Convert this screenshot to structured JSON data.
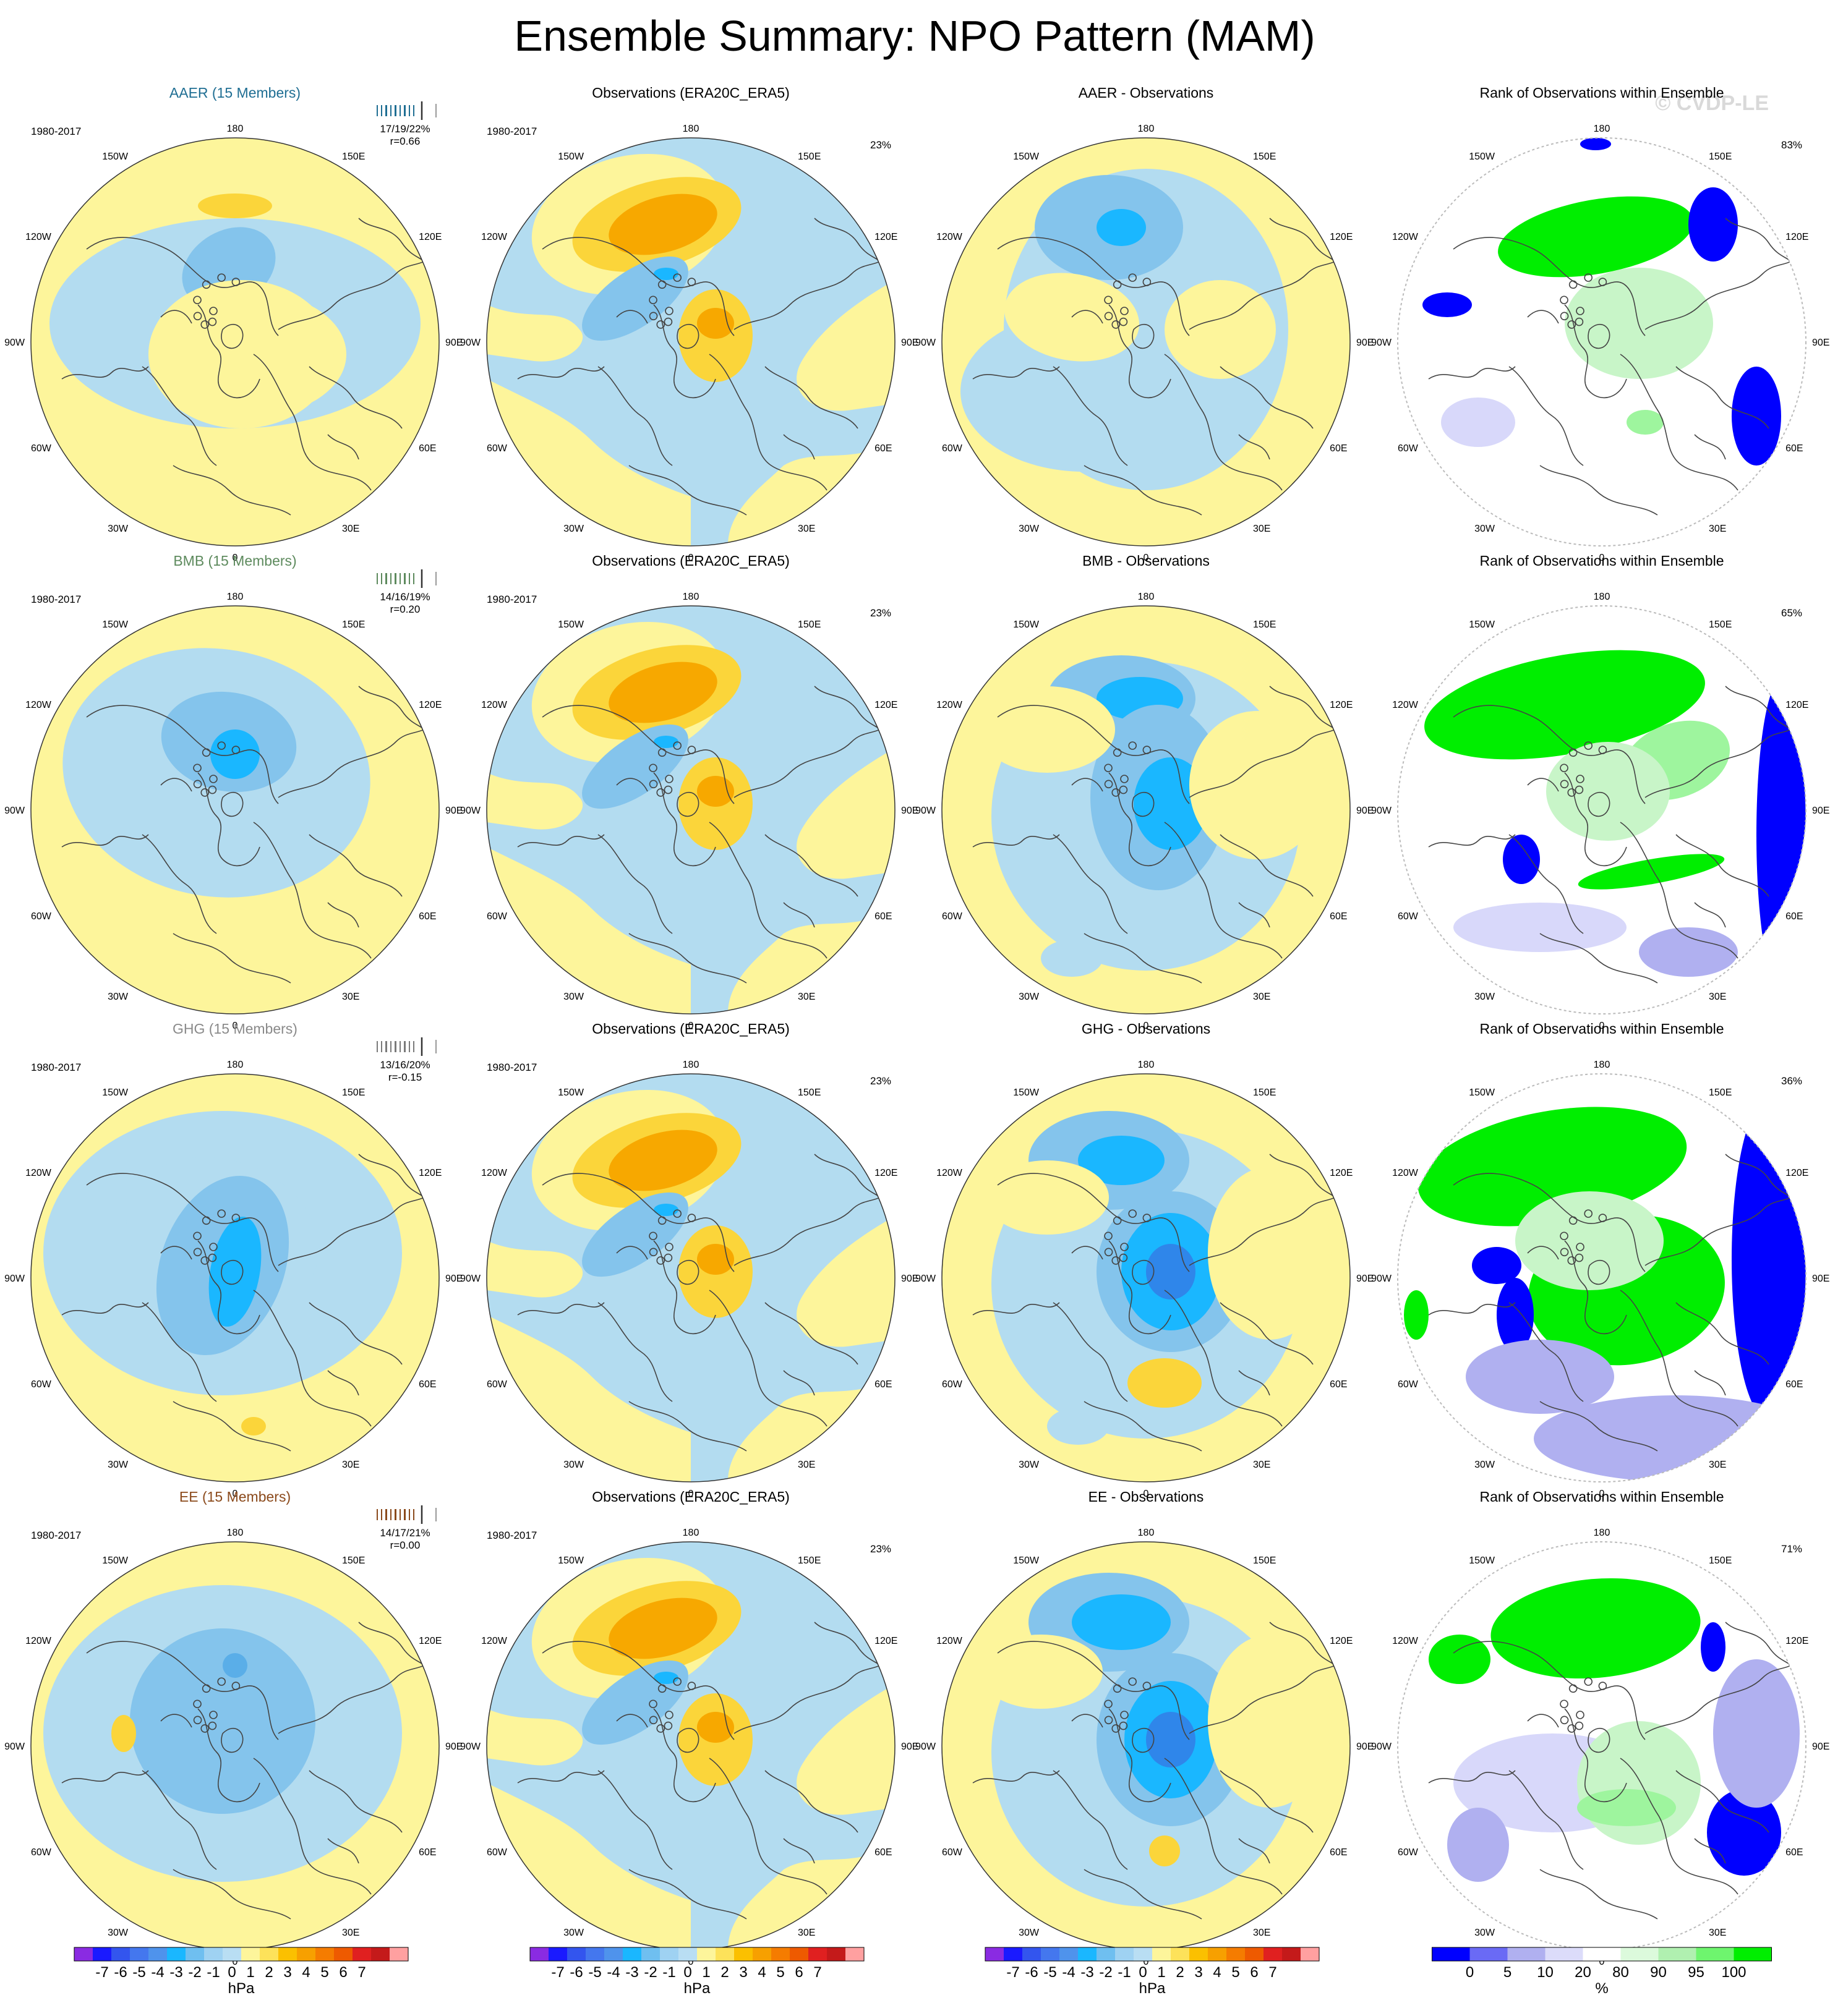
{
  "title": "Ensemble Summary: NPO Pattern (MAM)",
  "watermark": "© CVDP-LE",
  "colors": {
    "yellow": "#fdf59b",
    "lightblue": "#b3dcf0",
    "pos1": "#fbd53a",
    "pos2": "#f7a800",
    "pos3": "#ef8a00",
    "neg1": "#84c4ec",
    "neg2": "#5aaee8",
    "neg3": "#1ab7ff",
    "neg4": "#2f86ea",
    "rank_blue": "#0000ff",
    "rank_lav": "#b0b0f0",
    "rank_lav2": "#d8d8fa",
    "rank_green": "#00ee00",
    "rank_lgreen": "#c8f5c8",
    "rank_mgreen": "#9ef59e",
    "coast": "#444444"
  },
  "map_labels": {
    "lon_180": "180",
    "lon_150w": "150W",
    "lon_150e": "150E",
    "lon_120w": "120W",
    "lon_120e": "120E",
    "lon_90w": "90W",
    "lon_90e": "90E",
    "lon_60w": "60W",
    "lon_60e": "60E",
    "lon_30w": "30W",
    "lon_30e": "30E",
    "lon_0": "0"
  },
  "rows": [
    {
      "model": {
        "title": "AAER (15 Members)",
        "title_color": "#1f6e93",
        "period": "1980-2017",
        "stats_line1": "17/19/22%",
        "stats_line2": "r=0.66",
        "tick_color": "#1f6e93"
      },
      "obs": {
        "title": "Observations (ERA20C_ERA5)",
        "period": "1980-2017",
        "pct": "23%"
      },
      "diff": {
        "title": "AAER - Observations"
      },
      "rank": {
        "title": "Rank of Observations within Ensemble",
        "pct": "83%"
      }
    },
    {
      "model": {
        "title": "BMB (15 Members)",
        "title_color": "#5d8a5d",
        "period": "1980-2017",
        "stats_line1": "14/16/19%",
        "stats_line2": "r=0.20",
        "tick_color": "#5d8a5d"
      },
      "obs": {
        "title": "Observations (ERA20C_ERA5)",
        "period": "1980-2017",
        "pct": "23%"
      },
      "diff": {
        "title": "BMB - Observations"
      },
      "rank": {
        "title": "Rank of Observations within Ensemble",
        "pct": "65%"
      }
    },
    {
      "model": {
        "title": "GHG (15 Members)",
        "title_color": "#8a8a8a",
        "period": "1980-2017",
        "stats_line1": "13/16/20%",
        "stats_line2": "r=-0.15",
        "tick_color": "#7a7a7a"
      },
      "obs": {
        "title": "Observations (ERA20C_ERA5)",
        "period": "1980-2017",
        "pct": "23%"
      },
      "diff": {
        "title": "GHG - Observations"
      },
      "rank": {
        "title": "Rank of Observations within Ensemble",
        "pct": "36%"
      }
    },
    {
      "model": {
        "title": "EE (15 Members)",
        "title_color": "#8b4a1c",
        "period": "1980-2017",
        "stats_line1": "14/17/21%",
        "stats_line2": "r=0.00",
        "tick_color": "#8b4a1c"
      },
      "obs": {
        "title": "Observations (ERA20C_ERA5)",
        "period": "1980-2017",
        "pct": "23%"
      },
      "diff": {
        "title": "EE - Observations"
      },
      "rank": {
        "title": "Rank of Observations within Ensemble",
        "pct": "71%"
      }
    }
  ],
  "colorbar_hpa": {
    "labels": [
      "-7",
      "-6",
      "-5",
      "-4",
      "-3",
      "-2",
      "-1",
      "0",
      "1",
      "2",
      "3",
      "4",
      "5",
      "6",
      "7"
    ],
    "colors": [
      "#8a2be2",
      "#1a1aff",
      "#3355ee",
      "#4477ee",
      "#4f93ec",
      "#1ab7ff",
      "#6fbff0",
      "#9fd2f2",
      "#b9def3",
      "#fdf59b",
      "#fde25a",
      "#fbc000",
      "#f7a000",
      "#f57c00",
      "#ee5a00",
      "#e02020",
      "#c41a1a",
      "#ffa0a0"
    ],
    "unit": "hPa"
  },
  "colorbar_rank": {
    "labels": [
      "0",
      "5",
      "10",
      "20",
      "80",
      "90",
      "95",
      "100"
    ],
    "colors": [
      "#0000ff",
      "#6a6af5",
      "#b0b0f0",
      "#dcdcfa",
      "#ffffff",
      "#dcfadc",
      "#b0f0b0",
      "#6ef56e",
      "#00ee00"
    ],
    "unit": "%"
  }
}
